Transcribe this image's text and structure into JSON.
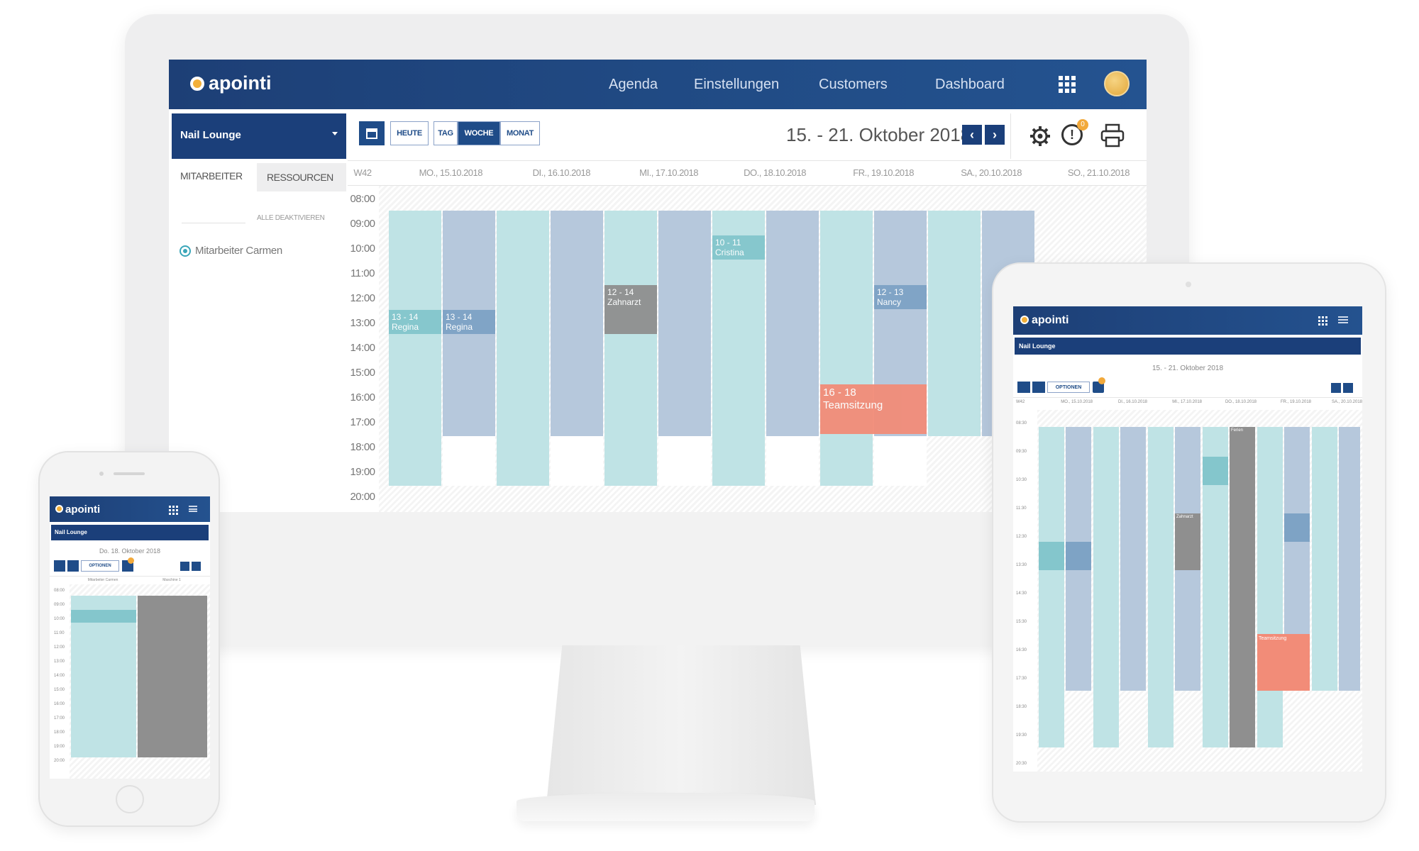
{
  "desktop": {
    "brand": "apointi",
    "nav": [
      "Agenda",
      "Einstellungen",
      "Customers",
      "Dashboard"
    ],
    "location": "Nail Lounge",
    "tabs": {
      "staff": "MITARBEITER",
      "resources": "RESSOURCEN"
    },
    "deactivate_all": "ALLE DEAKTIVIEREN",
    "staff_member": "Mitarbeiter Carmen",
    "toolbar": {
      "today": "HEUTE",
      "day": "TAG",
      "week": "WOCHE",
      "month": "MONAT"
    },
    "date_range": "15. - 21. Oktober 2018",
    "notification_count": "0",
    "week_label": "W42",
    "days": [
      "MO., 15.10.2018",
      "DI., 16.10.2018",
      "MI., 17.10.2018",
      "DO., 18.10.2018",
      "FR., 19.10.2018",
      "SA., 20.10.2018",
      "SO., 21.10.2018"
    ],
    "times": [
      "08:00",
      "09:00",
      "10:00",
      "11:00",
      "12:00",
      "13:00",
      "14:00",
      "15:00",
      "16:00",
      "17:00",
      "18:00",
      "19:00",
      "20:00"
    ],
    "events": [
      {
        "time": "13 - 14",
        "title": "Regina"
      },
      {
        "time": "13 - 14",
        "title": "Regina"
      },
      {
        "time": "12 - 14",
        "title": "Zahnarzt"
      },
      {
        "time": "10 - 11",
        "title": "Cristina"
      },
      {
        "time": "12 - 13",
        "title": "Nancy"
      },
      {
        "time": "16 - 18",
        "title": "Teamsitzung"
      }
    ],
    "colors": {
      "header": "#1d3f76",
      "cyan_column": "#bfe3e5",
      "blue_column": "#b6c8dc",
      "event_salmon": "#f28c78",
      "event_grey": "#8f8f8f",
      "badge": "#f2a93b"
    }
  },
  "phone": {
    "brand": "apointi",
    "location": "Nail Lounge",
    "date": "Do. 18. Oktober 2018",
    "options": "OPTIONEN",
    "columns": [
      "Mitarbeiter Carmen",
      "Maschine 1"
    ],
    "times": [
      "08:00",
      "09:00",
      "10:00",
      "11:00",
      "12:00",
      "13:00",
      "14:00",
      "15:00",
      "16:00",
      "17:00",
      "18:00",
      "19:00",
      "20:00"
    ]
  },
  "tablet": {
    "brand": "apointi",
    "location": "Nail Lounge",
    "date_range": "15. - 21. Oktober 2018",
    "options": "OPTIONEN",
    "week_label": "W42",
    "days": [
      "MO., 15.10.2018",
      "DI., 16.10.2018",
      "MI., 17.10.2018",
      "DO., 18.10.2018",
      "FR., 19.10.2018",
      "SA., 20.10.2018"
    ],
    "times": [
      "08:30",
      "09:30",
      "10:30",
      "11:30",
      "12:30",
      "13:30",
      "14:30",
      "15:30",
      "16:30",
      "17:30",
      "18:30",
      "19:30",
      "20:30"
    ],
    "events": [
      {
        "title": "Ferien"
      },
      {
        "title": "Teamsitzung"
      },
      {
        "title": "Zahnarzt"
      }
    ]
  }
}
